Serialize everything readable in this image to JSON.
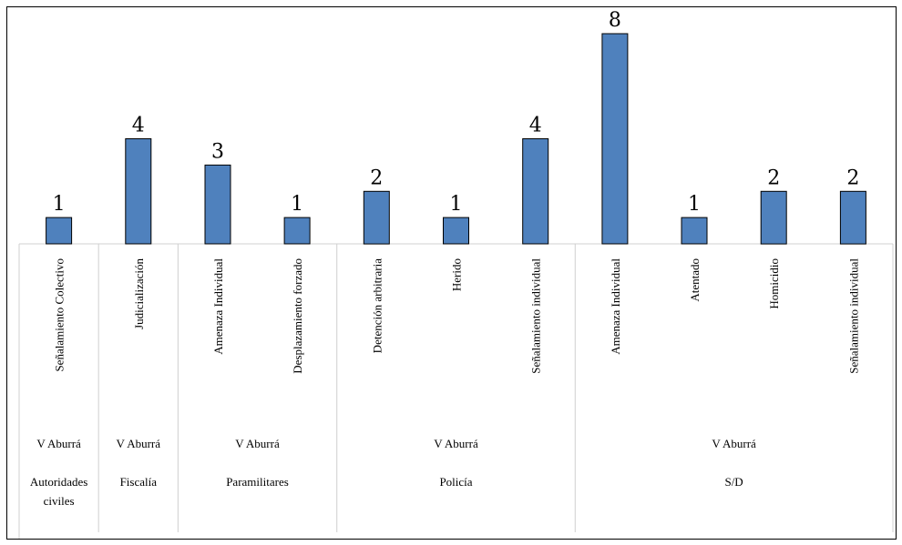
{
  "chart_data": {
    "type": "bar",
    "categories": [
      "Señalamiento Colectivo",
      "Judicialización",
      "Amenaza Individual",
      "Desplazamiento forzado",
      "Detención arbitraria",
      "Herido",
      "Señalamiento individual",
      "Amenaza Individual",
      "Atentado",
      "Homicidio",
      "Señalamiento individual"
    ],
    "values": [
      1,
      4,
      3,
      1,
      2,
      1,
      4,
      8,
      1,
      2,
      2
    ],
    "groups_level1": [
      {
        "label": "V Aburrá",
        "span": [
          0,
          0
        ]
      },
      {
        "label": "V Aburrá",
        "span": [
          1,
          1
        ]
      },
      {
        "label": "V Aburrá",
        "span": [
          2,
          3
        ]
      },
      {
        "label": "V Aburrá",
        "span": [
          4,
          6
        ]
      },
      {
        "label": "V Aburrá",
        "span": [
          7,
          10
        ]
      }
    ],
    "groups_level2": [
      {
        "label": "Autoridades civiles",
        "lines": [
          "Autoridades",
          "civiles"
        ],
        "span": [
          0,
          0
        ]
      },
      {
        "label": "Fiscalía",
        "lines": [
          "Fiscalía"
        ],
        "span": [
          1,
          1
        ]
      },
      {
        "label": "Paramilitares",
        "lines": [
          "Paramilitares"
        ],
        "span": [
          2,
          3
        ]
      },
      {
        "label": "Policía",
        "lines": [
          "Policía"
        ],
        "span": [
          4,
          6
        ]
      },
      {
        "label": "S/D",
        "lines": [
          "S/D"
        ],
        "span": [
          7,
          10
        ]
      }
    ],
    "ylim": [
      0,
      8
    ],
    "bar_color": "#4f81bd",
    "bar_border": "#000000",
    "grid": false,
    "legend": "none"
  }
}
